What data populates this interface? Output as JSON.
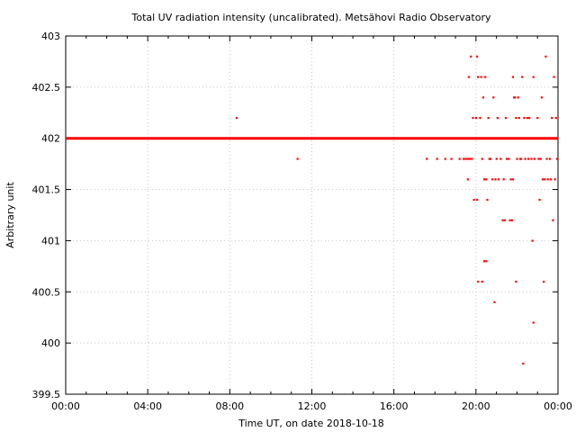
{
  "chart_data": {
    "type": "scatter",
    "title": "Total UV radiation intensity (uncalibrated). Metsähovi Radio Observatory",
    "xlabel": "Time UT, on date 2018-10-18",
    "ylabel": "Arbitrary unit",
    "xlim": [
      0,
      24
    ],
    "ylim": [
      399.5,
      403
    ],
    "x_tick_labels": [
      "00:00",
      "04:00",
      "08:00",
      "12:00",
      "16:00",
      "20:00",
      "00:00"
    ],
    "x_tick_hours": [
      0,
      4,
      8,
      12,
      16,
      20,
      24
    ],
    "y_ticks": [
      399.5,
      400,
      400.5,
      401,
      401.5,
      402,
      402.5,
      403
    ],
    "y_tick_labels": [
      "399.5",
      "400",
      "400.5",
      "401",
      "401.5",
      "402",
      "402.5",
      "403"
    ],
    "grid": true,
    "marker_color": "#ff0000",
    "baseline": {
      "x_start": 0,
      "x_end": 24,
      "y": 402
    },
    "points": [
      {
        "x": 8.33,
        "y": 402.2
      },
      {
        "x": 11.3,
        "y": 401.8
      },
      {
        "x": 17.6,
        "y": 401.8
      },
      {
        "x": 18.1,
        "y": 401.8
      },
      {
        "x": 18.5,
        "y": 401.8
      },
      {
        "x": 18.8,
        "y": 401.8
      },
      {
        "x": 19.2,
        "y": 401.8
      },
      {
        "x": 19.4,
        "y": 401.8
      },
      {
        "x": 19.5,
        "y": 401.8
      },
      {
        "x": 19.6,
        "y": 401.8
      },
      {
        "x": 19.7,
        "y": 401.8
      },
      {
        "x": 19.8,
        "y": 401.8
      },
      {
        "x": 19.6,
        "y": 401.6
      },
      {
        "x": 19.65,
        "y": 402.6
      },
      {
        "x": 19.75,
        "y": 402.8
      },
      {
        "x": 19.85,
        "y": 402.2
      },
      {
        "x": 19.9,
        "y": 401.4
      },
      {
        "x": 20.0,
        "y": 402.2
      },
      {
        "x": 20.05,
        "y": 402.8
      },
      {
        "x": 20.05,
        "y": 401.4
      },
      {
        "x": 20.1,
        "y": 400.6
      },
      {
        "x": 20.1,
        "y": 402.6
      },
      {
        "x": 20.2,
        "y": 402.2
      },
      {
        "x": 20.25,
        "y": 402.6
      },
      {
        "x": 20.3,
        "y": 400.6
      },
      {
        "x": 20.3,
        "y": 401.8
      },
      {
        "x": 20.35,
        "y": 402.4
      },
      {
        "x": 20.4,
        "y": 400.8
      },
      {
        "x": 20.4,
        "y": 401.6
      },
      {
        "x": 20.45,
        "y": 402.6
      },
      {
        "x": 20.5,
        "y": 401.6
      },
      {
        "x": 20.5,
        "y": 400.8
      },
      {
        "x": 20.55,
        "y": 401.4
      },
      {
        "x": 20.6,
        "y": 402.2
      },
      {
        "x": 20.65,
        "y": 401.8
      },
      {
        "x": 20.7,
        "y": 401.8
      },
      {
        "x": 20.8,
        "y": 401.6
      },
      {
        "x": 20.85,
        "y": 402.4
      },
      {
        "x": 20.9,
        "y": 400.4
      },
      {
        "x": 20.95,
        "y": 401.6
      },
      {
        "x": 21.0,
        "y": 401.8
      },
      {
        "x": 21.05,
        "y": 402.2
      },
      {
        "x": 21.1,
        "y": 401.6
      },
      {
        "x": 21.2,
        "y": 401.8
      },
      {
        "x": 21.3,
        "y": 401.2
      },
      {
        "x": 21.35,
        "y": 401.6
      },
      {
        "x": 21.4,
        "y": 401.2
      },
      {
        "x": 21.45,
        "y": 402.2
      },
      {
        "x": 21.5,
        "y": 401.8
      },
      {
        "x": 21.6,
        "y": 401.8
      },
      {
        "x": 21.65,
        "y": 401.2
      },
      {
        "x": 21.7,
        "y": 401.6
      },
      {
        "x": 21.75,
        "y": 401.2
      },
      {
        "x": 21.8,
        "y": 402.6
      },
      {
        "x": 21.8,
        "y": 401.6
      },
      {
        "x": 21.85,
        "y": 402.4
      },
      {
        "x": 21.9,
        "y": 402.4
      },
      {
        "x": 21.95,
        "y": 402.2
      },
      {
        "x": 21.95,
        "y": 400.6
      },
      {
        "x": 22.0,
        "y": 401.8
      },
      {
        "x": 22.05,
        "y": 402.4
      },
      {
        "x": 22.1,
        "y": 402.2
      },
      {
        "x": 22.15,
        "y": 401.8
      },
      {
        "x": 22.2,
        "y": 401.8
      },
      {
        "x": 22.25,
        "y": 402.6
      },
      {
        "x": 22.3,
        "y": 399.8
      },
      {
        "x": 22.35,
        "y": 402.2
      },
      {
        "x": 22.4,
        "y": 401.8
      },
      {
        "x": 22.5,
        "y": 402.2
      },
      {
        "x": 22.55,
        "y": 401.8
      },
      {
        "x": 22.6,
        "y": 402.2
      },
      {
        "x": 22.7,
        "y": 401.8
      },
      {
        "x": 22.75,
        "y": 401.0
      },
      {
        "x": 22.8,
        "y": 402.6
      },
      {
        "x": 22.8,
        "y": 400.2
      },
      {
        "x": 22.85,
        "y": 401.8
      },
      {
        "x": 22.9,
        "y": 402.0
      },
      {
        "x": 23.0,
        "y": 402.2
      },
      {
        "x": 23.05,
        "y": 401.8
      },
      {
        "x": 23.1,
        "y": 401.4
      },
      {
        "x": 23.15,
        "y": 401.8
      },
      {
        "x": 23.2,
        "y": 402.4
      },
      {
        "x": 23.25,
        "y": 401.6
      },
      {
        "x": 23.3,
        "y": 400.6
      },
      {
        "x": 23.35,
        "y": 401.6
      },
      {
        "x": 23.4,
        "y": 402.8
      },
      {
        "x": 23.45,
        "y": 401.8
      },
      {
        "x": 23.5,
        "y": 401.6
      },
      {
        "x": 23.6,
        "y": 401.8
      },
      {
        "x": 23.65,
        "y": 401.6
      },
      {
        "x": 23.7,
        "y": 402.2
      },
      {
        "x": 23.75,
        "y": 401.2
      },
      {
        "x": 23.8,
        "y": 402.6
      },
      {
        "x": 23.85,
        "y": 401.6
      },
      {
        "x": 23.9,
        "y": 402.2
      },
      {
        "x": 23.95,
        "y": 401.8
      }
    ]
  }
}
